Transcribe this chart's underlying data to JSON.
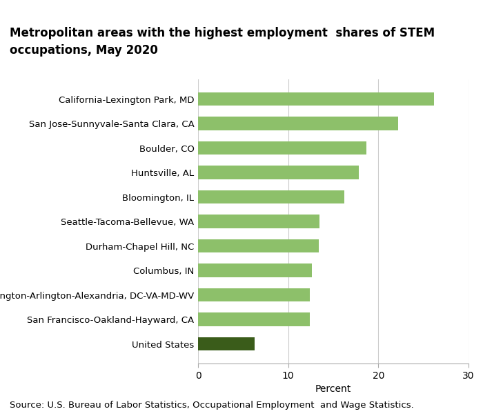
{
  "title_line1": "Metropolitan areas with the highest employment  shares of STEM",
  "title_line2": "occupations, May 2020",
  "categories": [
    "United States",
    "San Francisco-Oakland-Hayward, CA",
    "Washington-Arlington-Alexandria, DC-VA-MD-WV",
    "Columbus, IN",
    "Durham-Chapel Hill, NC",
    "Seattle-Tacoma-Bellevue, WA",
    "Bloomington, IL",
    "Huntsville, AL",
    "Boulder, CO",
    "San Jose-Sunnyvale-Santa Clara, CA",
    "California-Lexington Park, MD"
  ],
  "values": [
    6.3,
    12.4,
    12.4,
    12.6,
    13.4,
    13.5,
    16.2,
    17.8,
    18.7,
    22.2,
    26.2
  ],
  "bar_colors": [
    "#3a5c1a",
    "#8dc06a",
    "#8dc06a",
    "#8dc06a",
    "#8dc06a",
    "#8dc06a",
    "#8dc06a",
    "#8dc06a",
    "#8dc06a",
    "#8dc06a",
    "#8dc06a"
  ],
  "xlim": [
    0,
    30
  ],
  "xticks": [
    0,
    10,
    20,
    30
  ],
  "xlabel": "Percent",
  "source": "Source: U.S. Bureau of Labor Statistics, Occupational Employment  and Wage Statistics.",
  "background_color": "#ffffff",
  "bar_height": 0.55,
  "title_fontsize": 12,
  "label_fontsize": 9.5,
  "tick_fontsize": 10,
  "source_fontsize": 9.5
}
